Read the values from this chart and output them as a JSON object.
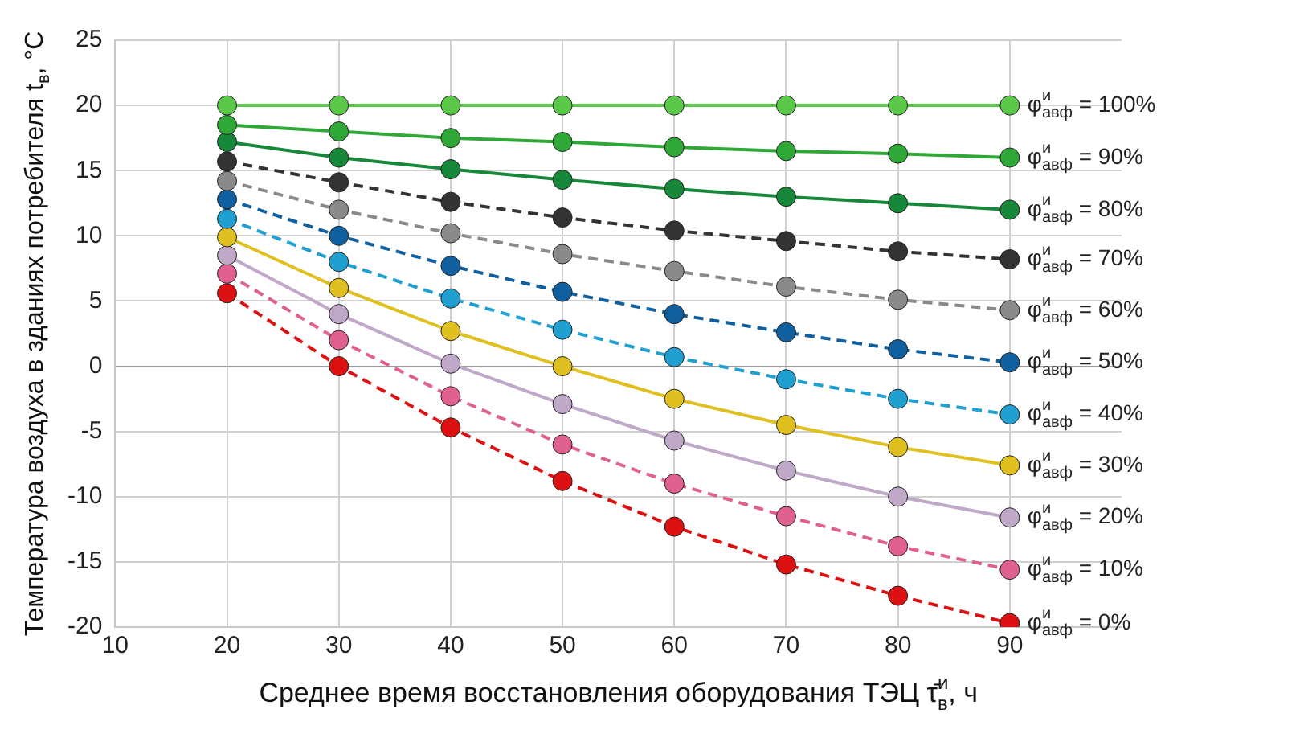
{
  "chart_data": {
    "type": "line",
    "xlabel": "Среднее время восстановления оборудования ТЭЦ τ̄$^{и}$$_{в}$, ч",
    "ylabel": "Температура воздуха в зданиях потребителя t$_{в}$, °C",
    "x": [
      20,
      30,
      40,
      50,
      60,
      70,
      80,
      90
    ],
    "xlim": [
      10,
      100
    ],
    "xticks": [
      10,
      20,
      30,
      40,
      50,
      60,
      70,
      80,
      90
    ],
    "ylim": [
      -20,
      25
    ],
    "yticks": [
      -20,
      -15,
      -10,
      -5,
      0,
      5,
      10,
      15,
      20,
      25
    ],
    "grid": true,
    "legend": false,
    "marker": "circle",
    "series": [
      {
        "name": "φ$^{и}$$_{авф}$ = 100%",
        "color": "#5cc84a",
        "line_style": "solid",
        "values": [
          20,
          20,
          20,
          20,
          20,
          20,
          20,
          20
        ]
      },
      {
        "name": "φ$^{и}$$_{авф}$ = 90%",
        "color": "#30a838",
        "line_style": "solid",
        "values": [
          18.5,
          18,
          17.5,
          17.2,
          16.8,
          16.5,
          16.3,
          16
        ]
      },
      {
        "name": "φ$^{и}$$_{авф}$ = 80%",
        "color": "#17883a",
        "line_style": "solid",
        "values": [
          17.2,
          16,
          15.1,
          14.3,
          13.6,
          13,
          12.5,
          12
        ]
      },
      {
        "name": "φ$^{и}$$_{авф}$ = 70%",
        "color": "#333333",
        "line_style": "dashed",
        "values": [
          15.7,
          14.1,
          12.6,
          11.4,
          10.4,
          9.6,
          8.8,
          8.2
        ]
      },
      {
        "name": "φ$^{и}$$_{авф}$ = 60%",
        "color": "#8a8a8a",
        "line_style": "dashed",
        "values": [
          14.2,
          12,
          10.2,
          8.6,
          7.3,
          6.1,
          5.1,
          4.3
        ]
      },
      {
        "name": "φ$^{и}$$_{авф}$ = 50%",
        "color": "#1060a0",
        "line_style": "dashed",
        "values": [
          12.8,
          10,
          7.7,
          5.7,
          4,
          2.6,
          1.3,
          0.3
        ]
      },
      {
        "name": "φ$^{и}$$_{авф}$ = 40%",
        "color": "#20a0d0",
        "line_style": "dashed",
        "values": [
          11.3,
          8,
          5.2,
          2.8,
          0.7,
          -1,
          -2.5,
          -3.7
        ]
      },
      {
        "name": "φ$^{и}$$_{авф}$ = 30%",
        "color": "#e0c020",
        "line_style": "solid",
        "values": [
          9.9,
          6,
          2.7,
          0,
          -2.5,
          -4.5,
          -6.2,
          -7.6
        ]
      },
      {
        "name": "φ$^{и}$$_{авф}$ = 20%",
        "color": "#c0a8c8",
        "line_style": "solid",
        "values": [
          8.5,
          4,
          0.2,
          -2.9,
          -5.7,
          -8,
          -10,
          -11.6
        ]
      },
      {
        "name": "φ$^{и}$$_{авф}$ = 10%",
        "color": "#e06090",
        "line_style": "dashed",
        "values": [
          7.1,
          2,
          -2.3,
          -6,
          -9,
          -11.5,
          -13.8,
          -15.6
        ]
      },
      {
        "name": "φ$^{и}$$_{авф}$ = 0%",
        "color": "#dd1111",
        "line_style": "dashed",
        "values": [
          5.6,
          0,
          -4.7,
          -8.8,
          -12.3,
          -15.2,
          -17.6,
          -19.7
        ]
      }
    ]
  }
}
